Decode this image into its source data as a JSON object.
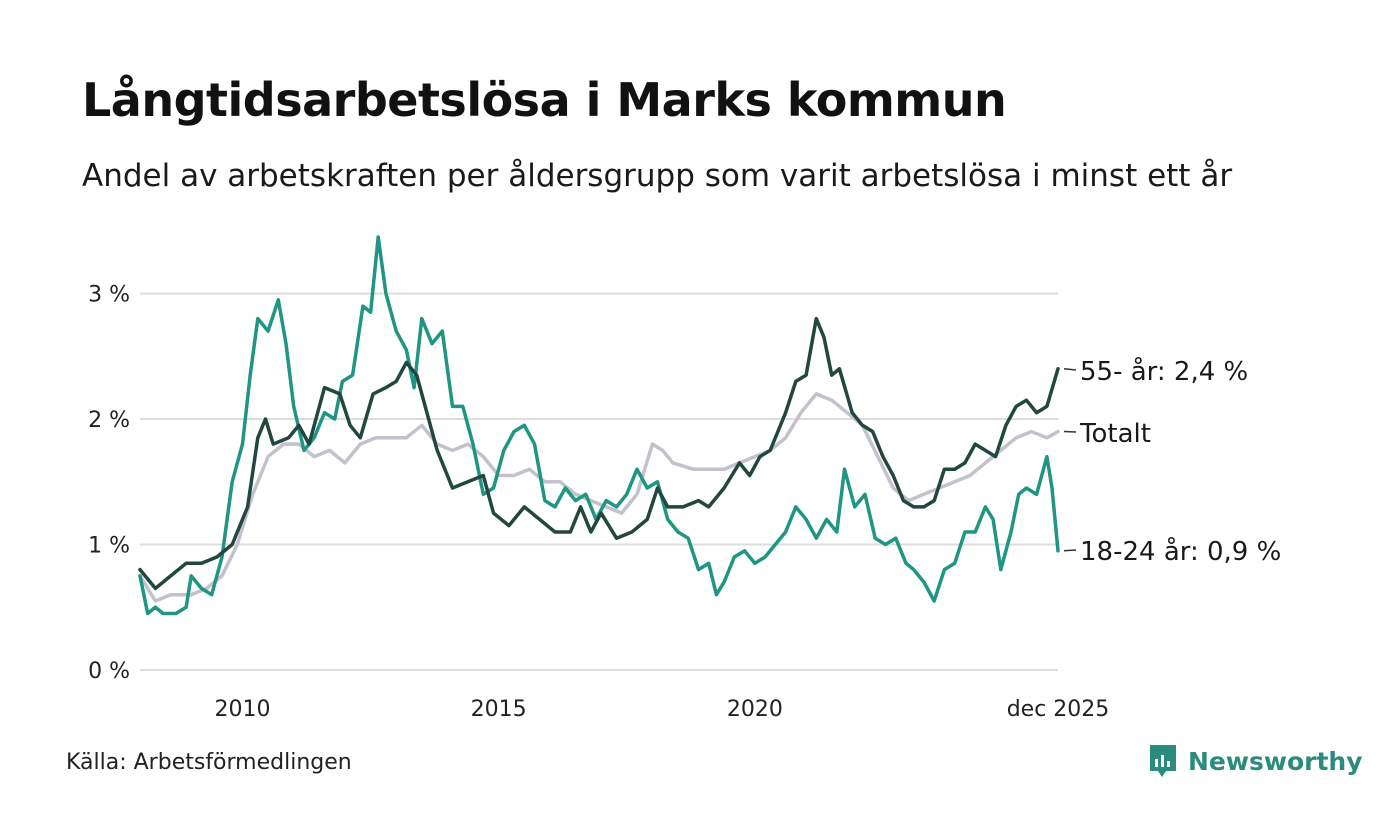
{
  "header": {
    "title": "Långtidsarbetslösa i Marks kommun",
    "subtitle": "Andel av arbetskraften per åldersgrupp som varit arbetslösa i minst ett år"
  },
  "footer": {
    "source": "Källa: Arbetsförmedlingen",
    "brand": "Newsworthy"
  },
  "colors": {
    "totalt": "#c3c1cb",
    "age_55": "#22473f",
    "age_18_24": "#1f9582",
    "grid": "#dddddd",
    "brand": "#2b8c7d"
  },
  "chart_data": {
    "type": "line",
    "title": "Långtidsarbetslösa i Marks kommun",
    "subtitle": "Andel av arbetskraften per åldersgrupp som varit arbetslösa i minst ett år",
    "xlabel": "",
    "ylabel": "",
    "x_range": [
      2008.0,
      2025.917
    ],
    "ylim": [
      0,
      3.5
    ],
    "y_ticks": [
      0,
      1,
      2,
      3
    ],
    "y_tick_labels": [
      "0 %",
      "1 %",
      "2 %",
      "3 %"
    ],
    "x_ticks": [
      2010,
      2015,
      2020,
      2025.917
    ],
    "x_tick_labels": [
      "2010",
      "2015",
      "2020",
      "dec 2025"
    ],
    "grid": true,
    "series": [
      {
        "name": "Totalt",
        "end_label": "Totalt",
        "color_key": "totalt",
        "points": [
          [
            2008.0,
            0.75
          ],
          [
            2008.3,
            0.55
          ],
          [
            2008.6,
            0.6
          ],
          [
            2009.0,
            0.6
          ],
          [
            2009.3,
            0.65
          ],
          [
            2009.6,
            0.75
          ],
          [
            2009.9,
            1.0
          ],
          [
            2010.2,
            1.4
          ],
          [
            2010.5,
            1.7
          ],
          [
            2010.8,
            1.8
          ],
          [
            2011.1,
            1.8
          ],
          [
            2011.4,
            1.7
          ],
          [
            2011.7,
            1.75
          ],
          [
            2012.0,
            1.65
          ],
          [
            2012.3,
            1.8
          ],
          [
            2012.6,
            1.85
          ],
          [
            2012.9,
            1.85
          ],
          [
            2013.2,
            1.85
          ],
          [
            2013.5,
            1.95
          ],
          [
            2013.8,
            1.8
          ],
          [
            2014.1,
            1.75
          ],
          [
            2014.4,
            1.8
          ],
          [
            2014.7,
            1.7
          ],
          [
            2015.0,
            1.55
          ],
          [
            2015.3,
            1.55
          ],
          [
            2015.6,
            1.6
          ],
          [
            2015.9,
            1.5
          ],
          [
            2016.2,
            1.5
          ],
          [
            2016.5,
            1.4
          ],
          [
            2016.8,
            1.35
          ],
          [
            2017.1,
            1.3
          ],
          [
            2017.4,
            1.25
          ],
          [
            2017.7,
            1.4
          ],
          [
            2018.0,
            1.8
          ],
          [
            2018.2,
            1.75
          ],
          [
            2018.4,
            1.65
          ],
          [
            2018.8,
            1.6
          ],
          [
            2019.1,
            1.6
          ],
          [
            2019.4,
            1.6
          ],
          [
            2019.7,
            1.65
          ],
          [
            2020.0,
            1.7
          ],
          [
            2020.3,
            1.75
          ],
          [
            2020.6,
            1.85
          ],
          [
            2020.9,
            2.05
          ],
          [
            2021.2,
            2.2
          ],
          [
            2021.5,
            2.15
          ],
          [
            2021.8,
            2.05
          ],
          [
            2022.1,
            1.95
          ],
          [
            2022.4,
            1.7
          ],
          [
            2022.7,
            1.45
          ],
          [
            2023.0,
            1.35
          ],
          [
            2023.3,
            1.4
          ],
          [
            2023.6,
            1.45
          ],
          [
            2023.9,
            1.5
          ],
          [
            2024.2,
            1.55
          ],
          [
            2024.5,
            1.65
          ],
          [
            2024.8,
            1.75
          ],
          [
            2025.1,
            1.85
          ],
          [
            2025.4,
            1.9
          ],
          [
            2025.7,
            1.85
          ],
          [
            2025.917,
            1.9
          ]
        ]
      },
      {
        "name": "55- år",
        "end_label": "55- år: 2,4 %",
        "color_key": "age_55",
        "points": [
          [
            2008.0,
            0.8
          ],
          [
            2008.3,
            0.65
          ],
          [
            2008.6,
            0.75
          ],
          [
            2008.9,
            0.85
          ],
          [
            2009.2,
            0.85
          ],
          [
            2009.5,
            0.9
          ],
          [
            2009.8,
            1.0
          ],
          [
            2010.1,
            1.3
          ],
          [
            2010.3,
            1.85
          ],
          [
            2010.45,
            2.0
          ],
          [
            2010.6,
            1.8
          ],
          [
            2010.9,
            1.85
          ],
          [
            2011.1,
            1.95
          ],
          [
            2011.3,
            1.8
          ],
          [
            2011.6,
            2.25
          ],
          [
            2011.9,
            2.2
          ],
          [
            2012.1,
            1.95
          ],
          [
            2012.3,
            1.85
          ],
          [
            2012.55,
            2.2
          ],
          [
            2012.8,
            2.25
          ],
          [
            2013.0,
            2.3
          ],
          [
            2013.2,
            2.45
          ],
          [
            2013.4,
            2.35
          ],
          [
            2013.6,
            2.05
          ],
          [
            2013.8,
            1.75
          ],
          [
            2014.1,
            1.45
          ],
          [
            2014.4,
            1.5
          ],
          [
            2014.7,
            1.55
          ],
          [
            2014.9,
            1.25
          ],
          [
            2015.2,
            1.15
          ],
          [
            2015.5,
            1.3
          ],
          [
            2015.8,
            1.2
          ],
          [
            2016.1,
            1.1
          ],
          [
            2016.4,
            1.1
          ],
          [
            2016.6,
            1.3
          ],
          [
            2016.8,
            1.1
          ],
          [
            2017.0,
            1.25
          ],
          [
            2017.3,
            1.05
          ],
          [
            2017.6,
            1.1
          ],
          [
            2017.9,
            1.2
          ],
          [
            2018.1,
            1.45
          ],
          [
            2018.3,
            1.3
          ],
          [
            2018.6,
            1.3
          ],
          [
            2018.9,
            1.35
          ],
          [
            2019.1,
            1.3
          ],
          [
            2019.4,
            1.45
          ],
          [
            2019.7,
            1.65
          ],
          [
            2019.9,
            1.55
          ],
          [
            2020.1,
            1.7
          ],
          [
            2020.3,
            1.75
          ],
          [
            2020.6,
            2.05
          ],
          [
            2020.8,
            2.3
          ],
          [
            2021.0,
            2.35
          ],
          [
            2021.2,
            2.8
          ],
          [
            2021.35,
            2.65
          ],
          [
            2021.5,
            2.35
          ],
          [
            2021.65,
            2.4
          ],
          [
            2021.9,
            2.05
          ],
          [
            2022.1,
            1.95
          ],
          [
            2022.3,
            1.9
          ],
          [
            2022.5,
            1.7
          ],
          [
            2022.7,
            1.55
          ],
          [
            2022.9,
            1.35
          ],
          [
            2023.1,
            1.3
          ],
          [
            2023.3,
            1.3
          ],
          [
            2023.5,
            1.35
          ],
          [
            2023.7,
            1.6
          ],
          [
            2023.9,
            1.6
          ],
          [
            2024.1,
            1.65
          ],
          [
            2024.3,
            1.8
          ],
          [
            2024.5,
            1.75
          ],
          [
            2024.7,
            1.7
          ],
          [
            2024.9,
            1.95
          ],
          [
            2025.1,
            2.1
          ],
          [
            2025.3,
            2.15
          ],
          [
            2025.5,
            2.05
          ],
          [
            2025.7,
            2.1
          ],
          [
            2025.917,
            2.4
          ]
        ]
      },
      {
        "name": "18-24 år",
        "end_label": "18-24 år: 0,9 %",
        "color_key": "age_18_24",
        "points": [
          [
            2008.0,
            0.75
          ],
          [
            2008.15,
            0.45
          ],
          [
            2008.3,
            0.5
          ],
          [
            2008.45,
            0.45
          ],
          [
            2008.7,
            0.45
          ],
          [
            2008.9,
            0.5
          ],
          [
            2009.0,
            0.75
          ],
          [
            2009.2,
            0.65
          ],
          [
            2009.4,
            0.6
          ],
          [
            2009.6,
            0.9
          ],
          [
            2009.8,
            1.5
          ],
          [
            2010.0,
            1.8
          ],
          [
            2010.15,
            2.35
          ],
          [
            2010.3,
            2.8
          ],
          [
            2010.5,
            2.7
          ],
          [
            2010.7,
            2.95
          ],
          [
            2010.85,
            2.6
          ],
          [
            2011.0,
            2.1
          ],
          [
            2011.2,
            1.75
          ],
          [
            2011.4,
            1.85
          ],
          [
            2011.6,
            2.05
          ],
          [
            2011.8,
            2.0
          ],
          [
            2011.95,
            2.3
          ],
          [
            2012.15,
            2.35
          ],
          [
            2012.35,
            2.9
          ],
          [
            2012.5,
            2.85
          ],
          [
            2012.65,
            3.45
          ],
          [
            2012.8,
            3.0
          ],
          [
            2013.0,
            2.7
          ],
          [
            2013.2,
            2.55
          ],
          [
            2013.35,
            2.25
          ],
          [
            2013.5,
            2.8
          ],
          [
            2013.7,
            2.6
          ],
          [
            2013.9,
            2.7
          ],
          [
            2014.1,
            2.1
          ],
          [
            2014.3,
            2.1
          ],
          [
            2014.5,
            1.8
          ],
          [
            2014.7,
            1.4
          ],
          [
            2014.9,
            1.45
          ],
          [
            2015.1,
            1.75
          ],
          [
            2015.3,
            1.9
          ],
          [
            2015.5,
            1.95
          ],
          [
            2015.7,
            1.8
          ],
          [
            2015.9,
            1.35
          ],
          [
            2016.1,
            1.3
          ],
          [
            2016.3,
            1.45
          ],
          [
            2016.5,
            1.35
          ],
          [
            2016.7,
            1.4
          ],
          [
            2016.9,
            1.2
          ],
          [
            2017.1,
            1.35
          ],
          [
            2017.3,
            1.3
          ],
          [
            2017.5,
            1.4
          ],
          [
            2017.7,
            1.6
          ],
          [
            2017.9,
            1.45
          ],
          [
            2018.1,
            1.5
          ],
          [
            2018.3,
            1.2
          ],
          [
            2018.5,
            1.1
          ],
          [
            2018.7,
            1.05
          ],
          [
            2018.9,
            0.8
          ],
          [
            2019.1,
            0.85
          ],
          [
            2019.25,
            0.6
          ],
          [
            2019.4,
            0.7
          ],
          [
            2019.6,
            0.9
          ],
          [
            2019.8,
            0.95
          ],
          [
            2020.0,
            0.85
          ],
          [
            2020.2,
            0.9
          ],
          [
            2020.4,
            1.0
          ],
          [
            2020.6,
            1.1
          ],
          [
            2020.8,
            1.3
          ],
          [
            2021.0,
            1.2
          ],
          [
            2021.2,
            1.05
          ],
          [
            2021.4,
            1.2
          ],
          [
            2021.6,
            1.1
          ],
          [
            2021.75,
            1.6
          ],
          [
            2021.95,
            1.3
          ],
          [
            2022.15,
            1.4
          ],
          [
            2022.35,
            1.05
          ],
          [
            2022.55,
            1.0
          ],
          [
            2022.75,
            1.05
          ],
          [
            2022.95,
            0.85
          ],
          [
            2023.1,
            0.8
          ],
          [
            2023.3,
            0.7
          ],
          [
            2023.5,
            0.55
          ],
          [
            2023.7,
            0.8
          ],
          [
            2023.9,
            0.85
          ],
          [
            2024.1,
            1.1
          ],
          [
            2024.3,
            1.1
          ],
          [
            2024.5,
            1.3
          ],
          [
            2024.65,
            1.2
          ],
          [
            2024.8,
            0.8
          ],
          [
            2025.0,
            1.1
          ],
          [
            2025.15,
            1.4
          ],
          [
            2025.3,
            1.45
          ],
          [
            2025.5,
            1.4
          ],
          [
            2025.7,
            1.7
          ],
          [
            2025.8,
            1.45
          ],
          [
            2025.917,
            0.95
          ]
        ]
      }
    ]
  }
}
